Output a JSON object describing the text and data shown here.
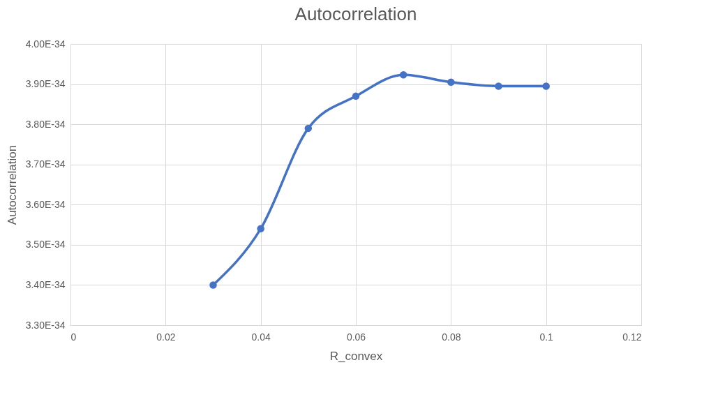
{
  "chart_data": {
    "type": "line",
    "title": "Autocorrelation",
    "xlabel": "R_convex",
    "ylabel": "Autocorrelation",
    "x": [
      0.03,
      0.04,
      0.05,
      0.06,
      0.07,
      0.08,
      0.09,
      0.1
    ],
    "series": [
      {
        "color": "#4472c4",
        "values": [
          3.4e-34,
          3.54e-34,
          3.79e-34,
          3.87e-34,
          3.923e-34,
          3.905e-34,
          3.895e-34,
          3.895e-34
        ]
      }
    ],
    "xlim": [
      0,
      0.12
    ],
    "xticks": [
      0,
      0.02,
      0.04,
      0.06,
      0.08,
      0.1,
      0.12
    ],
    "ylim": [
      3.3e-34,
      4e-34
    ],
    "yticks": [
      {
        "value": 3.3e-34,
        "label": "3.30E-34"
      },
      {
        "value": 3.4e-34,
        "label": "3.40E-34"
      },
      {
        "value": 3.5e-34,
        "label": "3.50E-34"
      },
      {
        "value": 3.6e-34,
        "label": "3.60E-34"
      },
      {
        "value": 3.7e-34,
        "label": "3.70E-34"
      },
      {
        "value": 3.8e-34,
        "label": "3.80E-34"
      },
      {
        "value": 3.9e-34,
        "label": "3.90E-34"
      },
      {
        "value": 4e-34,
        "label": "4.00E-34"
      }
    ],
    "grid": true,
    "marker": "circle",
    "line_style": "solid"
  }
}
